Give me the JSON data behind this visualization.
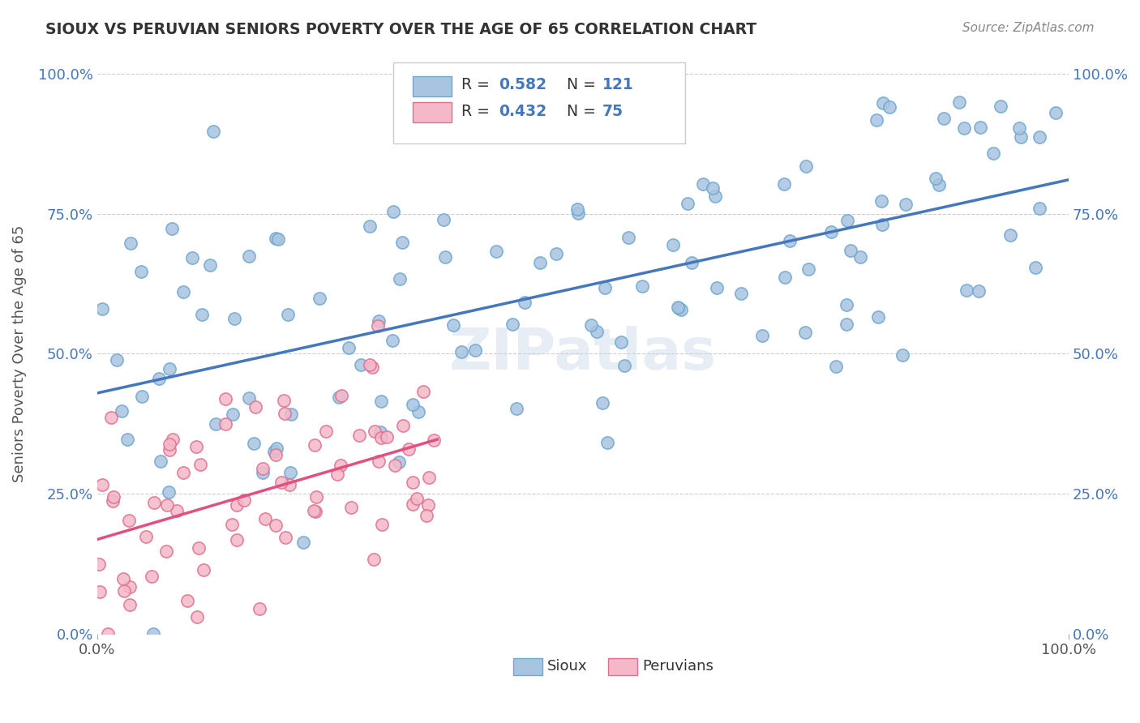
{
  "title": "SIOUX VS PERUVIAN SENIORS POVERTY OVER THE AGE OF 65 CORRELATION CHART",
  "source": "Source: ZipAtlas.com",
  "ylabel": "Seniors Poverty Over the Age of 65",
  "xlim": [
    0.0,
    1.0
  ],
  "ylim": [
    0.0,
    1.0
  ],
  "xtick_labels": [
    "0.0%",
    "100.0%"
  ],
  "ytick_labels": [
    "0.0%",
    "25.0%",
    "50.0%",
    "75.0%",
    "100.0%"
  ],
  "ytick_vals": [
    0.0,
    0.25,
    0.5,
    0.75,
    1.0
  ],
  "watermark": "ZIPatlas",
  "sioux_color": "#a8c4e0",
  "sioux_edge": "#6fa8d0",
  "peruvian_color": "#f4b8c8",
  "peruvian_edge": "#e07090",
  "line_sioux": "#4477bb",
  "line_peruvian": "#e05080",
  "sioux_seed": 42,
  "peruvian_seed": 99,
  "n_sioux": 121,
  "n_peruvian": 75,
  "R_sioux": 0.582,
  "R_peruvian": 0.432,
  "background": "#ffffff",
  "grid_color": "#cccccc",
  "title_color": "#333333",
  "axis_label_color": "#555555",
  "source_color": "#888888",
  "legend_N_color": "#4477bb"
}
